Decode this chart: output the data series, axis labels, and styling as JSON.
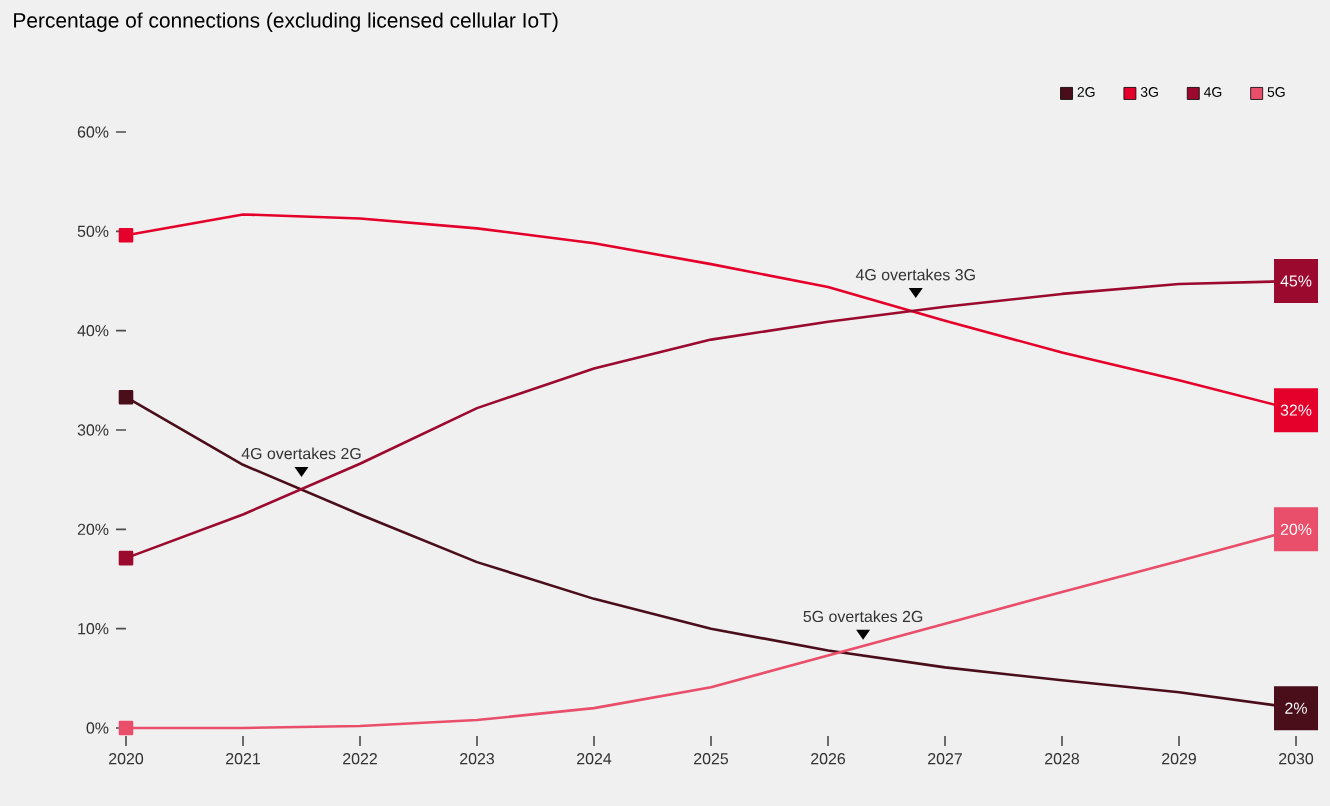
{
  "chart_data": {
    "type": "line",
    "title": "Percentage of connections (excluding licensed cellular IoT)",
    "x": [
      2020,
      2021,
      2022,
      2023,
      2024,
      2025,
      2026,
      2027,
      2028,
      2029,
      2030
    ],
    "series": [
      {
        "name": "2G",
        "color": "#4a0d1a",
        "values": [
          33.3,
          26.5,
          21.5,
          16.7,
          13,
          10,
          7.8,
          6.1,
          4.8,
          3.6,
          2
        ],
        "value_labels": [
          null,
          null,
          null,
          null,
          null,
          null,
          null,
          null,
          null,
          null,
          "2%"
        ]
      },
      {
        "name": "3G",
        "color": "#e4002b",
        "values": [
          49.6,
          51.7,
          51.3,
          50.3,
          48.8,
          46.7,
          44.4,
          41,
          37.8,
          35,
          32
        ],
        "value_labels": [
          null,
          null,
          null,
          null,
          null,
          null,
          null,
          null,
          null,
          null,
          "32%"
        ]
      },
      {
        "name": "4G",
        "color": "#9b0a2e",
        "values": [
          17.1,
          21.5,
          26.6,
          32.2,
          36.2,
          39.1,
          40.9,
          42.4,
          43.7,
          44.7,
          45
        ],
        "value_labels": [
          null,
          null,
          null,
          null,
          null,
          null,
          null,
          null,
          null,
          null,
          "45%"
        ]
      },
      {
        "name": "5G",
        "color": "#e94e6a",
        "values": [
          0,
          0,
          0.2,
          0.8,
          2,
          4.1,
          7.3,
          10.5,
          13.7,
          16.8,
          20
        ],
        "value_labels": [
          null,
          null,
          null,
          null,
          null,
          null,
          null,
          null,
          null,
          null,
          "20%"
        ]
      }
    ],
    "xlim": [
      2020,
      2030
    ],
    "xticks": [
      2020,
      2021,
      2022,
      2023,
      2024,
      2025,
      2026,
      2027,
      2028,
      2029,
      2030
    ],
    "ylim": [
      0,
      60
    ],
    "yticks": [
      {
        "value": 0,
        "label": "0%"
      },
      {
        "value": 10,
        "label": "10%"
      },
      {
        "value": 20,
        "label": "20%"
      },
      {
        "value": 30,
        "label": "30%"
      },
      {
        "value": 40,
        "label": "40%"
      },
      {
        "value": 50,
        "label": "50%"
      },
      {
        "value": 60,
        "label": "60%"
      }
    ],
    "annotations": [
      {
        "text": "4G overtakes 2G",
        "x": 2021.5,
        "y": 24
      },
      {
        "text": "4G overtakes 3G",
        "x": 2026.75,
        "y": 42
      },
      {
        "text": "5G overtakes 2G",
        "x": 2026.3,
        "y": 7.6
      }
    ],
    "legend": "top right",
    "line_style": "solid",
    "grid": false
  }
}
